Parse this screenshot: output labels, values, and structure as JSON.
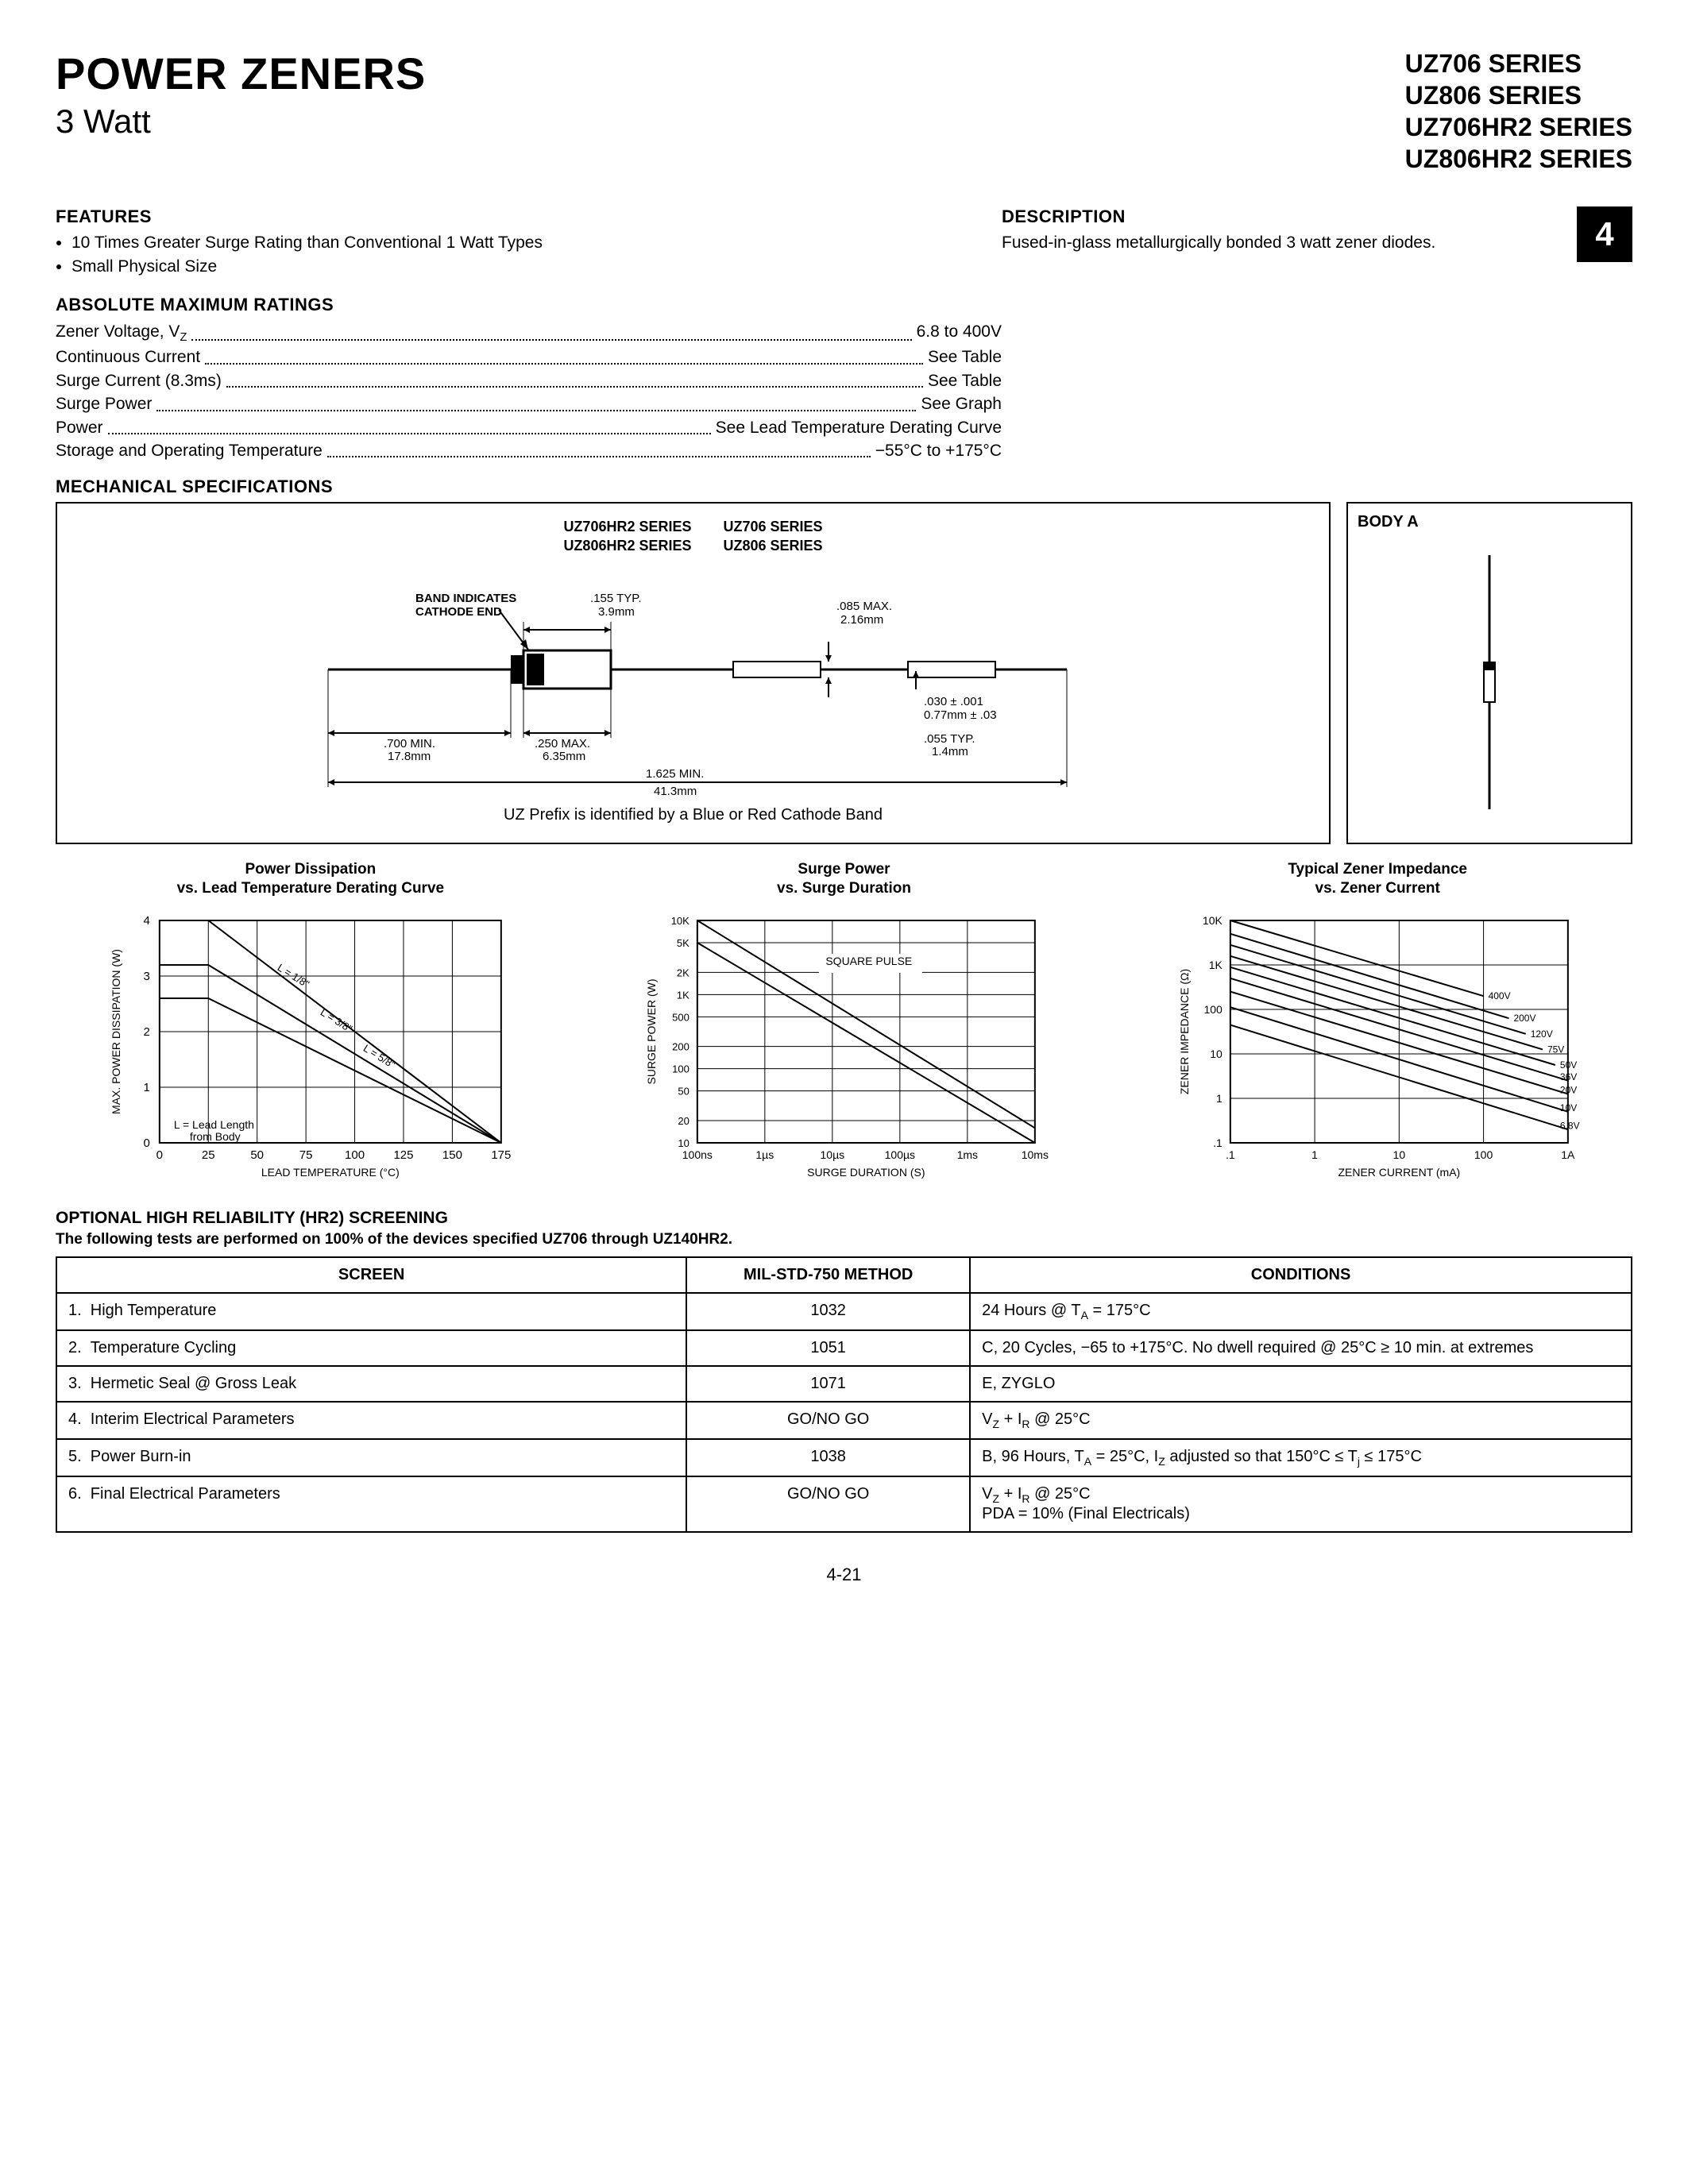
{
  "header": {
    "title": "POWER ZENERS",
    "subtitle": "3 Watt",
    "series": [
      "UZ706 SERIES",
      "UZ806 SERIES",
      "UZ706HR2 SERIES",
      "UZ806HR2 SERIES"
    ]
  },
  "features": {
    "heading": "FEATURES",
    "items": [
      "10 Times Greater Surge Rating than Conventional 1 Watt Types",
      "Small Physical Size"
    ]
  },
  "description": {
    "heading": "DESCRIPTION",
    "text": "Fused-in-glass metallurgically bonded 3 watt zener diodes."
  },
  "page_badge": "4",
  "ratings": {
    "heading": "ABSOLUTE MAXIMUM RATINGS",
    "rows": [
      {
        "label": "Zener Voltage, V_Z",
        "value": "6.8 to 400V"
      },
      {
        "label": "Continuous Current",
        "value": "See Table"
      },
      {
        "label": "Surge Current (8.3ms)",
        "value": "See Table"
      },
      {
        "label": "Surge Power",
        "value": "See Graph"
      },
      {
        "label": "Power",
        "value": "See Lead Temperature Derating Curve"
      },
      {
        "label": "Storage and Operating Temperature",
        "value": "−55°C to +175°C"
      }
    ]
  },
  "mech": {
    "heading": "MECHANICAL SPECIFICATIONS",
    "series_left": [
      "UZ706HR2 SERIES",
      "UZ806HR2 SERIES"
    ],
    "series_right": [
      "UZ706 SERIES",
      "UZ806 SERIES"
    ],
    "cathode_note": "BAND INDICATES CATHODE END",
    "dims": {
      "d155": ".155 TYP.\n3.9mm",
      "d085": ".085 MAX.\n2.16mm",
      "d030": ".030 ± .001\n0.77mm ± .03",
      "d055": ".055 TYP.\n1.4mm",
      "d700": ".700 MIN.\n17.8mm",
      "d250": ".250 MAX.\n6.35mm",
      "d1625": "1.625 MIN.\n41.3mm"
    },
    "caption": "UZ Prefix is identified by a Blue or Red Cathode Band",
    "bodya": "BODY A"
  },
  "charts": {
    "chart1": {
      "title": "Power Dissipation\nvs. Lead Temperature Derating Curve",
      "xlabel": "LEAD TEMPERATURE (°C)",
      "ylabel": "MAX. POWER DISSIPATION (W)",
      "xlim": [
        0,
        175
      ],
      "xtick_step": 25,
      "ylim": [
        0,
        4
      ],
      "ytick_step": 1,
      "note": "L = Lead Length from Body",
      "line_labels": [
        "L = 1/8\"",
        "L = 3/8\"",
        "L = 5/8\""
      ],
      "colors": {
        "line": "#000000",
        "grid": "#000000",
        "bg": "#ffffff"
      },
      "series": [
        {
          "label": "L = 1/8\"",
          "x1": 25,
          "y1": 4.0,
          "x2": 175,
          "y2": 0
        },
        {
          "label": "L = 3/8\"",
          "x1": 25,
          "y1": 3.2,
          "x2": 175,
          "y2": 0
        },
        {
          "label": "L = 5/8\"",
          "x1": 25,
          "y1": 2.6,
          "x2": 175,
          "y2": 0
        }
      ]
    },
    "chart2": {
      "title": "Surge Power\nvs. Surge Duration",
      "xlabel": "SURGE DURATION (S)",
      "ylabel": "SURGE POWER (W)",
      "xticks": [
        "100ns",
        "1µs",
        "10µs",
        "100µs",
        "1ms",
        "10ms"
      ],
      "yticks": [
        "10",
        "20",
        "50",
        "100",
        "200",
        "500",
        "1K",
        "2K",
        "5K",
        "10K"
      ],
      "pulse_note": "SQUARE PULSE",
      "colors": {
        "line": "#000000",
        "grid": "#000000",
        "bg": "#ffffff"
      },
      "series": [
        {
          "x1_log": -7,
          "y1_log": 4.0,
          "x2_log": -2,
          "y2_log": 1.2
        },
        {
          "x1_log": -7,
          "y1_log": 3.7,
          "x2_log": -2,
          "y2_log": 1.0
        }
      ]
    },
    "chart3": {
      "title": "Typical Zener Impedance\nvs. Zener Current",
      "xlabel": "ZENER CURRENT (mA)",
      "ylabel": "ZENER IMPEDANCE (Ω)",
      "xticks": [
        ".1",
        "1",
        "10",
        "100",
        "1A"
      ],
      "yticks": [
        ".1",
        "1",
        "10",
        "100",
        "1K",
        "10K"
      ],
      "line_labels": [
        "400V",
        "200V",
        "120V",
        "75V",
        "50V",
        "36V",
        "20V",
        "10V",
        "6.8V"
      ],
      "colors": {
        "line": "#000000",
        "grid": "#000000",
        "bg": "#ffffff"
      },
      "series": [
        {
          "label": "400V",
          "x1_log": -1,
          "y1_log": 4.0,
          "x2_log": 2,
          "y2_log": 2.3
        },
        {
          "label": "200V",
          "x1_log": -1,
          "y1_log": 3.7,
          "x2_log": 2.3,
          "y2_log": 1.8
        },
        {
          "label": "120V",
          "x1_log": -1,
          "y1_log": 3.45,
          "x2_log": 2.5,
          "y2_log": 1.45
        },
        {
          "label": "75V",
          "x1_log": -1,
          "y1_log": 3.2,
          "x2_log": 2.7,
          "y2_log": 1.1
        },
        {
          "label": "50V",
          "x1_log": -1,
          "y1_log": 2.95,
          "x2_log": 2.85,
          "y2_log": 0.75
        },
        {
          "label": "36V",
          "x1_log": -1,
          "y1_log": 2.7,
          "x2_log": 3,
          "y2_log": 0.4
        },
        {
          "label": "20V",
          "x1_log": -1,
          "y1_log": 2.4,
          "x2_log": 3,
          "y2_log": 0.1
        },
        {
          "label": "10V",
          "x1_log": -1,
          "y1_log": 2.05,
          "x2_log": 3,
          "y2_log": -0.3
        },
        {
          "label": "6.8V",
          "x1_log": -1,
          "y1_log": 1.65,
          "x2_log": 3,
          "y2_log": -0.7
        }
      ]
    }
  },
  "screening": {
    "heading": "OPTIONAL HIGH RELIABILITY (HR2) SCREENING",
    "subheading": "The following tests are performed on 100% of the devices specified UZ706 through UZ140HR2.",
    "columns": [
      "SCREEN",
      "MIL-STD-750 METHOD",
      "CONDITIONS"
    ],
    "rows": [
      {
        "n": "1.",
        "screen": "High Temperature",
        "method": "1032",
        "cond": "24 Hours @ T_A = 175°C"
      },
      {
        "n": "2.",
        "screen": "Temperature Cycling",
        "method": "1051",
        "cond": "C, 20 Cycles, −65 to +175°C. No dwell required @ 25°C ≥ 10 min. at extremes"
      },
      {
        "n": "3.",
        "screen": "Hermetic Seal @ Gross Leak",
        "method": "1071",
        "cond": "E, ZYGLO"
      },
      {
        "n": "4.",
        "screen": "Interim Electrical Parameters",
        "method": "GO/NO GO",
        "cond": "V_Z + I_R @ 25°C"
      },
      {
        "n": "5.",
        "screen": "Power Burn-in",
        "method": "1038",
        "cond": "B, 96 Hours, T_A = 25°C, I_Z adjusted so that 150°C ≤ T_j ≤ 175°C"
      },
      {
        "n": "6.",
        "screen": "Final Electrical Parameters",
        "method": "GO/NO GO",
        "cond": "V_Z + I_R @ 25°C\nPDA = 10% (Final Electricals)"
      }
    ]
  },
  "page_number": "4-21"
}
